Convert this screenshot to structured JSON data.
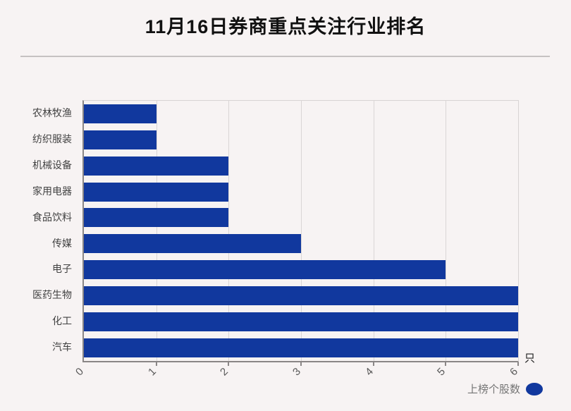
{
  "title": "11月16日券商重点关注行业排名",
  "chart_data": {
    "type": "bar",
    "orientation": "horizontal",
    "title": "11月16日券商重点关注行业排名",
    "categories": [
      "农林牧渔",
      "纺织服装",
      "机械设备",
      "家用电器",
      "食品饮料",
      "传媒",
      "电子",
      "医药生物",
      "化工",
      "汽车"
    ],
    "series": [
      {
        "name": "上榜个股数",
        "values": [
          1,
          1,
          2,
          2,
          2,
          3,
          5,
          6,
          6,
          6
        ]
      }
    ],
    "x_ticks": [
      "0",
      "1",
      "2",
      "3",
      "4",
      "5",
      "6"
    ],
    "xlim": [
      0,
      6
    ],
    "x_unit": "只",
    "xlabel": "",
    "ylabel": "",
    "grid": "vertical gridlines at each integer",
    "legend_position": "bottom-right",
    "tick_label_rotation_deg": -45,
    "colors": {
      "bar": "#11389e",
      "background": "#f7f3f3",
      "gridline": "#dad6d6",
      "axis": "#8a8686",
      "title": "#111111",
      "category_label": "#424242",
      "tick_label": "#595959",
      "legend_text": "#757575",
      "divider": "#c6c2c2"
    }
  },
  "legend": {
    "label": "上榜个股数"
  },
  "x_axis": {
    "unit_label": "只"
  }
}
